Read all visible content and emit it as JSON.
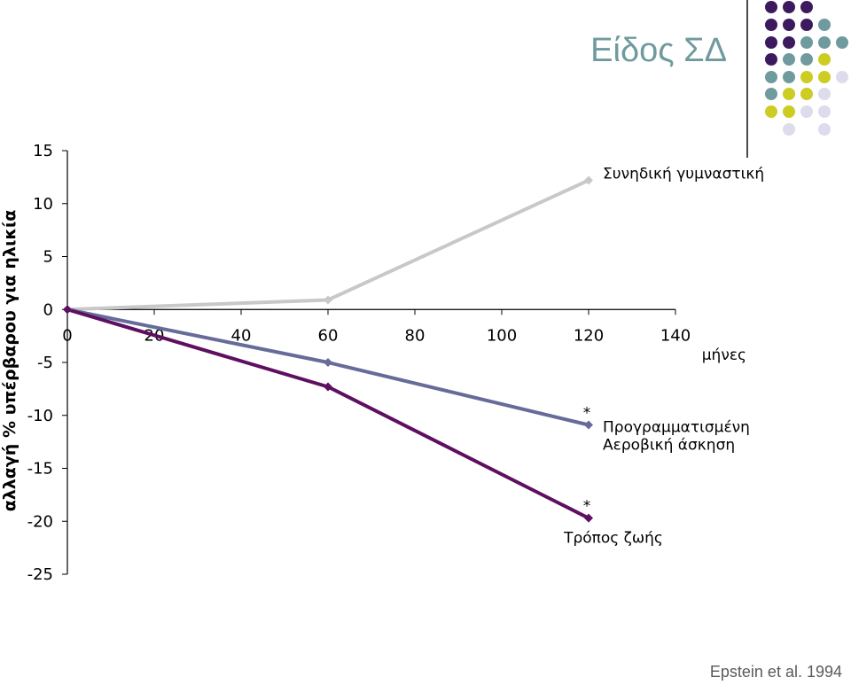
{
  "slide": {
    "title": "Είδος ΣΔ",
    "citation": "Epstein et al. 1994"
  },
  "decoration": {
    "dot_palette": [
      "#3d1a5e",
      "#6f9a9e",
      "#cccc22",
      "#dcdcec"
    ]
  },
  "chart_data": {
    "type": "line",
    "ylabel": "αλλαγή % υπέρβαρου για ηλικία",
    "xlabel": "μήνες",
    "xlim": [
      0,
      140
    ],
    "ylim": [
      -25,
      15
    ],
    "x_ticks": [
      "0",
      "20",
      "40",
      "60",
      "80",
      "100",
      "120",
      "140"
    ],
    "y_ticks": [
      "15",
      "10",
      "5",
      "0",
      "-5",
      "-10",
      "-15",
      "-20",
      "-25"
    ],
    "series": [
      {
        "name": "Συνηδική γυμναστική",
        "x": [
          0,
          60,
          120
        ],
        "y": [
          0,
          0.9,
          12.2
        ],
        "color": "#c8c8c8"
      },
      {
        "name": "Προγραμματισμένη Αεροβική άσκηση",
        "name_lines": [
          "Προγραμματισμένη",
          "Αεροβική άσκηση"
        ],
        "x": [
          0,
          60,
          120
        ],
        "y": [
          0,
          -5,
          -10.9
        ],
        "color": "#666b99",
        "annotation": "*"
      },
      {
        "name": "Τρόπος ζωής",
        "x": [
          0,
          60,
          120
        ],
        "y": [
          0,
          -7.3,
          -19.7
        ],
        "color": "#5e0f60",
        "annotation": "*"
      }
    ]
  }
}
